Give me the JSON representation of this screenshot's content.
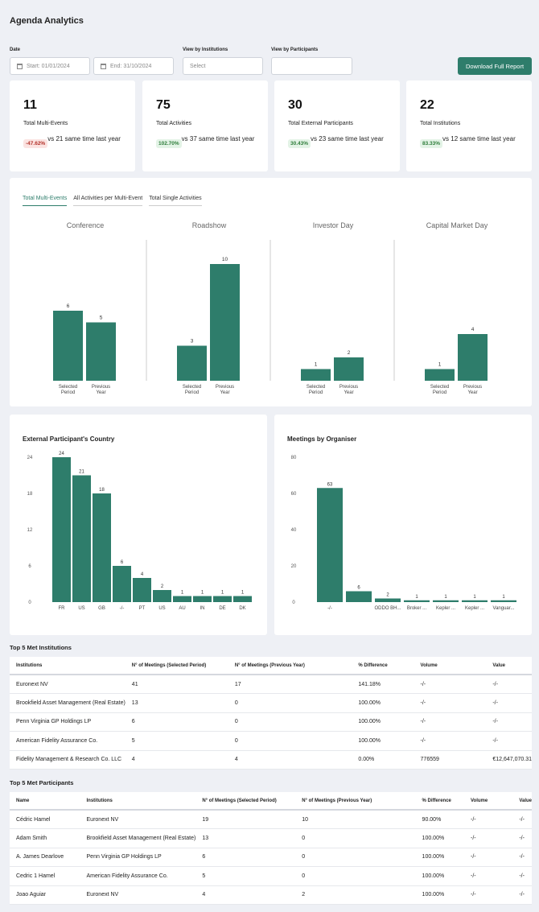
{
  "page": {
    "title": "Agenda Analytics"
  },
  "filters": {
    "date_label": "Date",
    "start_value": "Start: 01/01/2024",
    "end_value": "End: 31/10/2024",
    "institutions_label": "View by Institutions",
    "institutions_placeholder": "Select",
    "participants_label": "View by Participants",
    "participants_value": "",
    "download_label": "Download Full Report"
  },
  "stats": [
    {
      "value": "11",
      "label": "Total Multi-Events",
      "badge": "-47.62%",
      "trend": "neg",
      "compare": "vs 21 same time last year"
    },
    {
      "value": "75",
      "label": "Total Activities",
      "badge": "102.70%",
      "trend": "pos",
      "compare": "vs 37 same time last year"
    },
    {
      "value": "30",
      "label": "Total External Participants",
      "badge": "30.43%",
      "trend": "pos",
      "compare": "vs 23 same time last year"
    },
    {
      "value": "22",
      "label": "Total Institutions",
      "badge": "83.33%",
      "trend": "pos",
      "compare": "vs 12 same time last year"
    }
  ],
  "tabs": [
    "Total Multi-Events",
    "All Activities per Multi-Event",
    "Total Single Activities"
  ],
  "colors": {
    "accent": "#2e7d6b",
    "bar": "#2e7d6b"
  },
  "chart_data": [
    {
      "type": "bar",
      "title": "Conference",
      "categories": [
        "Selected Period",
        "Previous Year"
      ],
      "values": [
        6,
        5
      ],
      "ylim": [
        0,
        10
      ]
    },
    {
      "type": "bar",
      "title": "Roadshow",
      "categories": [
        "Selected Period",
        "Previous Year"
      ],
      "values": [
        3,
        10
      ],
      "ylim": [
        0,
        10
      ]
    },
    {
      "type": "bar",
      "title": "Investor Day",
      "categories": [
        "Selected Period",
        "Previous Year"
      ],
      "values": [
        1,
        2
      ],
      "ylim": [
        0,
        10
      ]
    },
    {
      "type": "bar",
      "title": "Capital Market Day",
      "categories": [
        "Selected Period",
        "Previous Year"
      ],
      "values": [
        1,
        4
      ],
      "ylim": [
        0,
        10
      ]
    },
    {
      "type": "bar",
      "title": "External Participant's Country",
      "categories": [
        "FR",
        "US",
        "GB",
        "-/-",
        "PT",
        "US",
        "AU",
        "IN",
        "DE",
        "DK"
      ],
      "values": [
        24,
        21,
        18,
        6,
        4,
        2,
        1,
        1,
        1,
        1
      ],
      "ylim": [
        0,
        24
      ],
      "yticks": [
        0,
        6,
        12,
        18,
        24
      ]
    },
    {
      "type": "bar",
      "title": "Meetings by Organiser",
      "categories": [
        "-/-",
        "",
        "ODDO BH...",
        "Broker ...",
        "Kepler ...",
        "Kepler ...",
        "Vanguar..."
      ],
      "values": [
        63,
        6,
        2,
        1,
        1,
        1,
        1
      ],
      "ylim": [
        0,
        80
      ],
      "yticks": [
        0,
        20,
        40,
        60,
        80
      ]
    }
  ],
  "institutions_table": {
    "title": "Top 5 Met Institutions",
    "headers": [
      "Institutions",
      "N° of Meetings (Selected Period)",
      "N° of Meetings (Previous Year)",
      "% Difference",
      "Volume",
      "Value"
    ],
    "rows": [
      [
        "Euronext NV",
        "41",
        "17",
        "141.18%",
        "-/-",
        "-/-"
      ],
      [
        "Brookfield Asset Management (Real Estate)",
        "13",
        "0",
        "100.00%",
        "-/-",
        "-/-"
      ],
      [
        "Penn Virginia GP Holdings LP",
        "6",
        "0",
        "100.00%",
        "-/-",
        "-/-"
      ],
      [
        "American Fidelity Assurance Co.",
        "5",
        "0",
        "100.00%",
        "-/-",
        "-/-"
      ],
      [
        "Fidelity Management & Research Co. LLC",
        "4",
        "4",
        "0.00%",
        "776559",
        "€12,647,070.31"
      ]
    ]
  },
  "participants_table": {
    "title": "Top 5 Met Participants",
    "headers": [
      "Name",
      "Institutions",
      "N° of Meetings (Selected Period)",
      "N° of Meetings (Previous Year)",
      "% Difference",
      "Volume",
      "Value"
    ],
    "rows": [
      [
        "Cédric Hamel",
        "Euronext NV",
        "19",
        "10",
        "90.00%",
        "-/-",
        "-/-"
      ],
      [
        "Adam Smith",
        "Brookfield Asset Management (Real Estate)",
        "13",
        "0",
        "100.00%",
        "-/-",
        "-/-"
      ],
      [
        "A. James Dearlove",
        "Penn Virginia GP Holdings LP",
        "6",
        "0",
        "100.00%",
        "-/-",
        "-/-"
      ],
      [
        "Cedric 1 Hamel",
        "American Fidelity Assurance Co.",
        "5",
        "0",
        "100.00%",
        "-/-",
        "-/-"
      ],
      [
        "Joao Aguiar",
        "Euronext NV",
        "4",
        "2",
        "100.00%",
        "-/-",
        "-/-"
      ]
    ]
  }
}
